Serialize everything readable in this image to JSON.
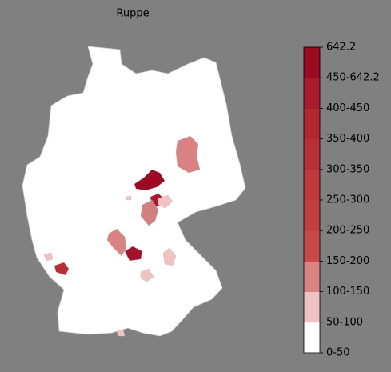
{
  "title": "Ruppe",
  "legend": {
    "labels": [
      "0-50",
      "50-100",
      "100-150",
      "150-200",
      "200-250",
      "250-300",
      "300-350",
      "350-400",
      "400-450",
      "450-642.2",
      "642.2"
    ],
    "colors": [
      "#ffffff",
      "#f0c2c2",
      "#da8383",
      "#c84949",
      "#c23f3f",
      "#bf3a3d",
      "#b82f36",
      "#b2262f",
      "#a91a2a",
      "#9c0b23"
    ]
  }
}
